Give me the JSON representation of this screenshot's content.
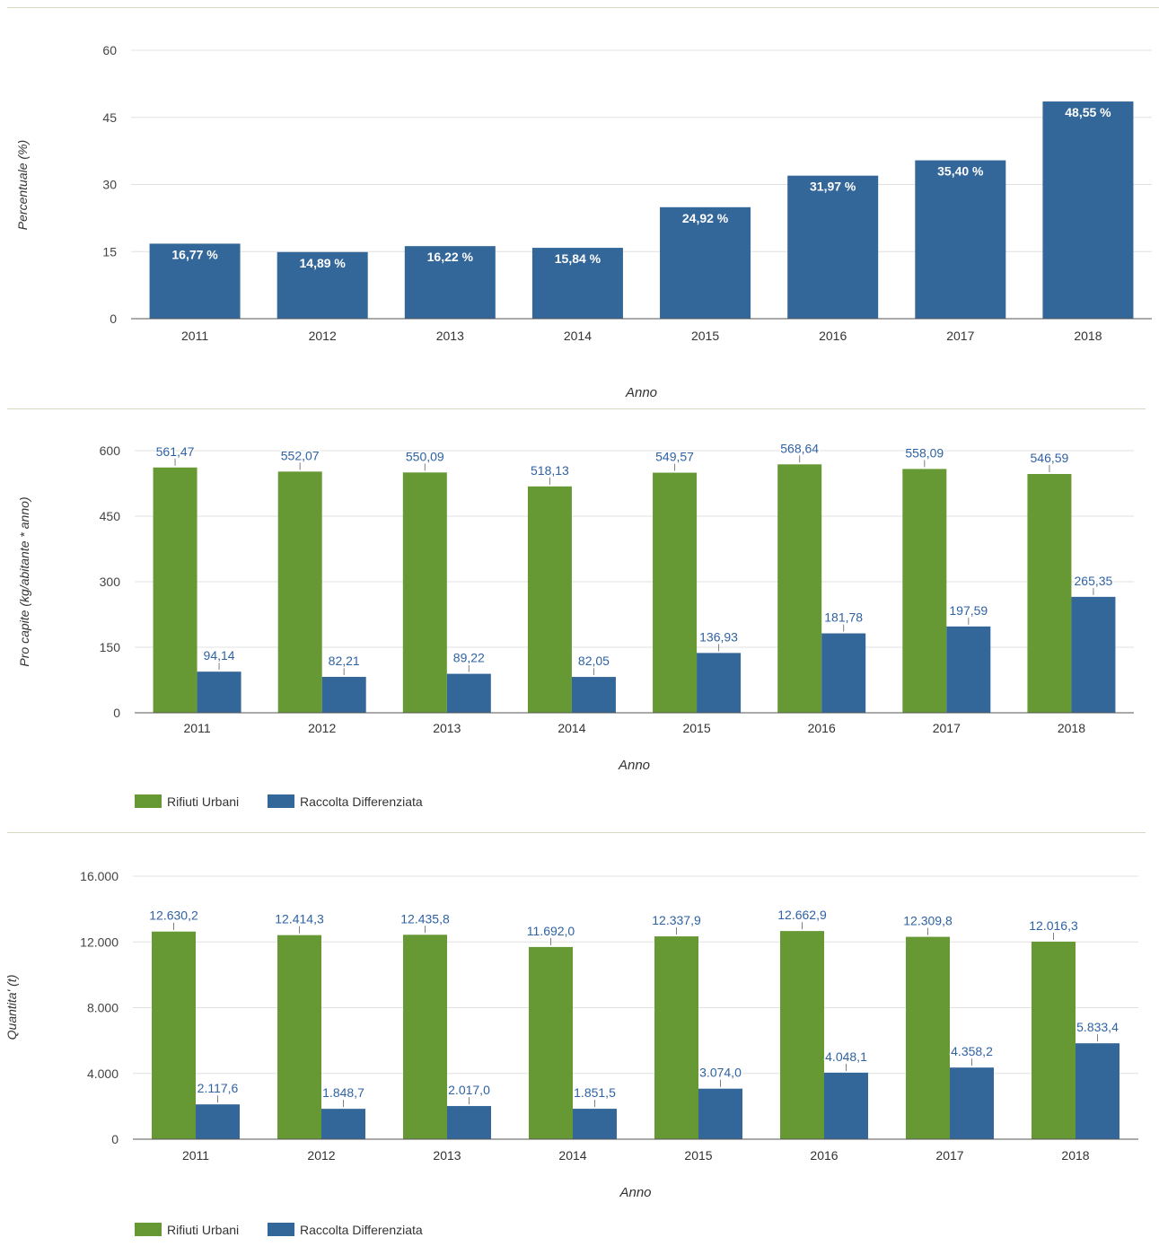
{
  "colors": {
    "green": "#669933",
    "blue": "#336699",
    "grid": "#e0e0e0",
    "axis": "#555555",
    "label_blue": "#2f62a3"
  },
  "chart_data": [
    {
      "type": "bar",
      "categories": [
        "2011",
        "2012",
        "2013",
        "2014",
        "2015",
        "2016",
        "2017",
        "2018"
      ],
      "series": [
        {
          "values": [
            16.77,
            14.89,
            16.22,
            15.84,
            24.92,
            31.97,
            35.4,
            48.55
          ],
          "labels": [
            "16,77 %",
            "14,89 %",
            "16,22 %",
            "15,84 %",
            "24,92 %",
            "31,97 %",
            "35,40 %",
            "48,55 %"
          ]
        }
      ],
      "xlabel": "Anno",
      "ylabel": "Percentuale (%)",
      "ylim": [
        0,
        60
      ],
      "yticks": [
        "0",
        "15",
        "30",
        "45",
        "60"
      ],
      "grid": true
    },
    {
      "type": "bar",
      "categories": [
        "2011",
        "2012",
        "2013",
        "2014",
        "2015",
        "2016",
        "2017",
        "2018"
      ],
      "series": [
        {
          "name": "Rifiuti Urbani",
          "values": [
            561.47,
            552.07,
            550.09,
            518.13,
            549.57,
            568.64,
            558.09,
            546.59
          ],
          "labels": [
            "561,47",
            "552,07",
            "550,09",
            "518,13",
            "549,57",
            "568,64",
            "558,09",
            "546,59"
          ]
        },
        {
          "name": "Raccolta Differenziata",
          "values": [
            94.14,
            82.21,
            89.22,
            82.05,
            136.93,
            181.78,
            197.59,
            265.35
          ],
          "labels": [
            "94,14",
            "82,21",
            "89,22",
            "82,05",
            "136,93",
            "181,78",
            "197,59",
            "265,35"
          ]
        }
      ],
      "xlabel": "Anno",
      "ylabel": "Pro capite (kg/abitante * anno)",
      "ylim": [
        0,
        600
      ],
      "yticks": [
        "0",
        "150",
        "300",
        "450",
        "600"
      ],
      "grid": true,
      "legend": "bottom-left"
    },
    {
      "type": "bar",
      "categories": [
        "2011",
        "2012",
        "2013",
        "2014",
        "2015",
        "2016",
        "2017",
        "2018"
      ],
      "series": [
        {
          "name": "Rifiuti Urbani",
          "values": [
            12630.2,
            12414.3,
            12435.8,
            11692.0,
            12337.9,
            12662.9,
            12309.8,
            12016.3
          ],
          "labels": [
            "12.630,2",
            "12.414,3",
            "12.435,8",
            "11.692,0",
            "12.337,9",
            "12.662,9",
            "12.309,8",
            "12.016,3"
          ]
        },
        {
          "name": "Raccolta Differenziata",
          "values": [
            2117.6,
            1848.7,
            2017.0,
            1851.5,
            3074.0,
            4048.1,
            4358.2,
            5833.4
          ],
          "labels": [
            "2.117,6",
            "1.848,7",
            "2.017,0",
            "1.851,5",
            "3.074,0",
            "4.048,1",
            "4.358,2",
            "5.833,4"
          ]
        }
      ],
      "xlabel": "Anno",
      "ylabel": "Quantita' (t)",
      "ylim": [
        0,
        16000
      ],
      "yticks": [
        "0",
        "4.000",
        "8.000",
        "12.000",
        "16.000"
      ],
      "grid": true,
      "legend": "bottom-left"
    }
  ]
}
